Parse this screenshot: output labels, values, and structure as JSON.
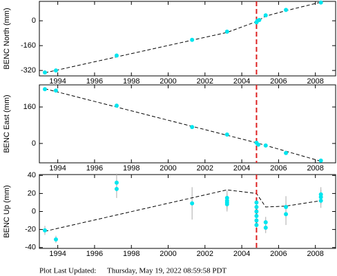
{
  "chart_data": [
    {
      "type": "scatter",
      "ylabel": "BENC North (mm)",
      "color": "#00e5ee",
      "x": [
        1993.3,
        1993.9,
        1997.2,
        2001.3,
        2003.2,
        2004.8,
        2004.85,
        2004.95,
        2005.3,
        2006.4,
        2008.3
      ],
      "values": [
        -333,
        -320,
        -224,
        -123,
        -70,
        -10,
        0,
        5,
        35,
        70,
        118
      ],
      "fit": {
        "x": [
          1993.3,
          2003.2,
          2004.8,
          2005.3,
          2006.4,
          2008.3
        ],
        "values": [
          -335,
          -75,
          -5,
          30,
          65,
          120
        ]
      },
      "event_x": 2004.8,
      "event_color": "#dd2222",
      "xlim": [
        1993.0,
        2009.1
      ],
      "ylim": [
        -355,
        125
      ],
      "xticks": [
        1994,
        1996,
        1998,
        2000,
        2002,
        2004,
        2006,
        2008
      ],
      "yticks": [
        -320,
        -160,
        0
      ]
    },
    {
      "type": "scatter",
      "ylabel": "BENC East (mm)",
      "color": "#00e5ee",
      "x": [
        1993.3,
        1993.9,
        1997.2,
        2001.3,
        2003.2,
        2004.8,
        2004.9,
        2005.3,
        2006.4,
        2008.3
      ],
      "values": [
        238,
        232,
        166,
        72,
        39,
        3,
        -5,
        -9,
        -42,
        -75
      ],
      "fit": {
        "x": [
          1993.3,
          2004.8,
          2008.3
        ],
        "values": [
          240,
          3,
          -78
        ]
      },
      "event_x": 2004.8,
      "event_color": "#dd2222",
      "xlim": [
        1993.0,
        2009.1
      ],
      "ylim": [
        -85,
        257
      ],
      "xticks": [
        1994,
        1996,
        1998,
        2000,
        2002,
        2004,
        2006,
        2008
      ],
      "yticks": [
        0,
        160
      ]
    },
    {
      "type": "scatter",
      "ylabel": "BENC Up (mm)",
      "color": "#00e5ee",
      "x": [
        1993.3,
        1993.9,
        1997.2,
        1997.2,
        2001.3,
        2003.2,
        2003.2,
        2003.2,
        2003.2,
        2004.8,
        2004.8,
        2004.8,
        2004.8,
        2004.8,
        2004.8,
        2005.3,
        2005.3,
        2006.4,
        2006.4,
        2008.3,
        2008.3,
        2008.3
      ],
      "values": [
        -21,
        -31,
        32,
        25,
        9,
        15,
        12,
        10,
        8,
        10,
        5,
        0,
        -5,
        -10,
        -15,
        -12,
        -18,
        5,
        -3,
        19,
        16,
        12
      ],
      "errors": [
        5,
        4,
        10,
        10,
        18,
        8,
        8,
        8,
        8,
        5,
        5,
        5,
        5,
        5,
        5,
        6,
        6,
        12,
        12,
        8,
        8,
        8
      ],
      "fit": {
        "x": [
          1993.3,
          2003.2,
          2004.8,
          2005.3,
          2006.4,
          2008.3
        ],
        "values": [
          -22,
          24,
          20,
          5,
          6,
          12
        ]
      },
      "event_x": 2004.8,
      "event_color": "#dd2222",
      "xlim": [
        1993.0,
        2009.1
      ],
      "ylim": [
        -41,
        41
      ],
      "xticks": [
        1994,
        1996,
        1998,
        2000,
        2002,
        2004,
        2006,
        2008
      ],
      "yticks": [
        -40,
        -20,
        0,
        20,
        40
      ]
    }
  ],
  "footer": {
    "label": "Plot Last Updated:",
    "date": "Thursday, May 19, 2022 08:59:58 PDT"
  }
}
